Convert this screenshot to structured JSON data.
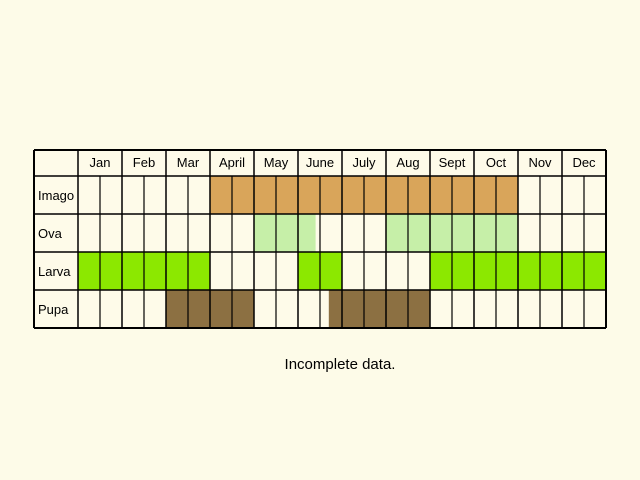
{
  "chart_data": {
    "type": "table",
    "months": [
      "Jan",
      "Feb",
      "Mar",
      "April",
      "May",
      "June",
      "July",
      "Aug",
      "Sept",
      "Oct",
      "Nov",
      "Dec"
    ],
    "cells_per_month": 2,
    "rows": [
      {
        "label": "Imago",
        "color": "#d9a55a",
        "cells": [
          0,
          0,
          0,
          0,
          0,
          0,
          1,
          1,
          1,
          1,
          1,
          1,
          1,
          1,
          1,
          1,
          1,
          1,
          1,
          1,
          0,
          0,
          0,
          0
        ]
      },
      {
        "label": "Ova",
        "color": "#c6efa8",
        "cells": [
          0,
          0,
          0,
          0,
          0,
          0,
          0,
          0,
          1,
          1,
          0.8,
          0,
          0,
          0,
          1,
          1,
          1,
          1,
          1,
          1,
          0,
          0,
          0,
          0
        ]
      },
      {
        "label": "Larva",
        "color": "#8ce800",
        "cells": [
          1,
          1,
          1,
          1,
          1,
          1,
          0,
          0,
          0,
          0,
          1,
          1,
          0,
          0,
          0,
          0,
          1,
          1,
          1,
          1,
          1,
          1,
          1,
          1
        ]
      },
      {
        "label": "Pupa",
        "color": "#8c7042",
        "cells": [
          0,
          0,
          0,
          0,
          1,
          1,
          1,
          1,
          0,
          0,
          0,
          -0.6,
          1,
          1,
          1,
          1,
          0,
          0,
          0,
          0,
          0,
          0,
          0,
          0
        ]
      }
    ],
    "empty_color": "#fefbe9",
    "grid_color": "#000000"
  },
  "caption": "Incomplete data."
}
